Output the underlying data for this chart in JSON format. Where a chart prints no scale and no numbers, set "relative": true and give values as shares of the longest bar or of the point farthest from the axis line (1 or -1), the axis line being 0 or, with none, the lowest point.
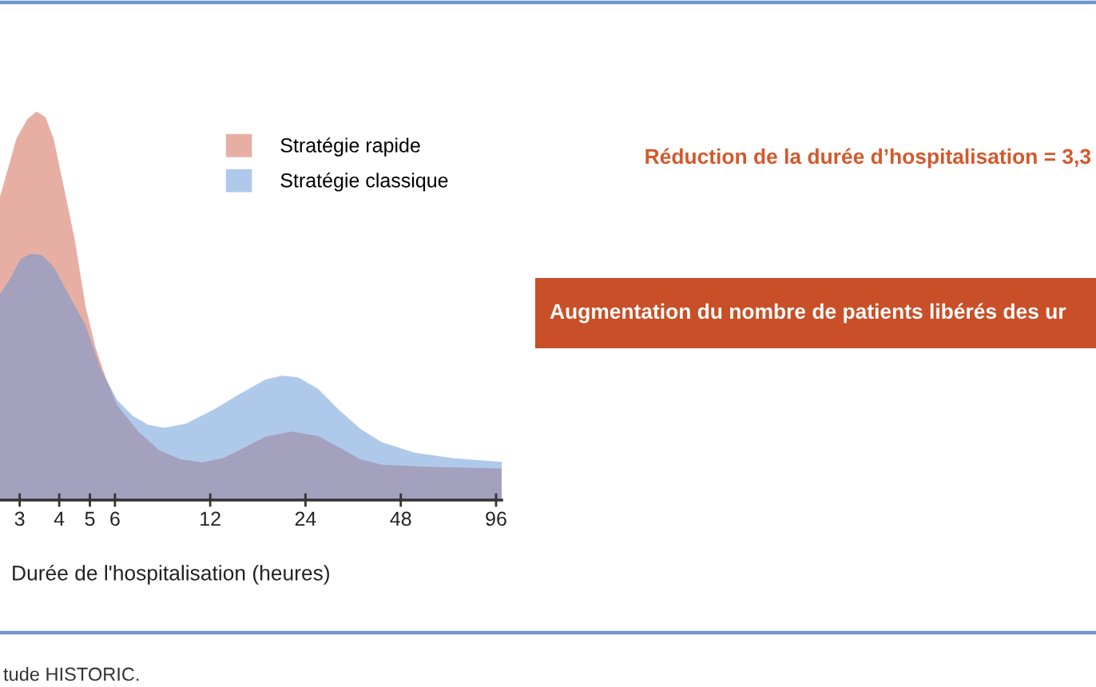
{
  "chart_data": {
    "type": "area",
    "relative": true,
    "log": "x",
    "xlabel": "Durée de l'hospitalisation (heures)",
    "xlim": [
      2.6,
      100
    ],
    "xticks": [
      3,
      4,
      5,
      6,
      12,
      24,
      48,
      96
    ],
    "tick_labels": "x",
    "grid": false,
    "legend": "top right",
    "series": [
      {
        "name": "Stratégie rapide",
        "color": "#d0604a",
        "x": [
          2.6,
          2.93,
          3.17,
          3.39,
          3.62,
          3.84,
          4.15,
          4.48,
          4.84,
          5.22,
          5.64,
          6.09,
          7.11,
          8.29,
          9.67,
          11.3,
          13.2,
          15.4,
          17.9,
          21.7,
          26.3,
          30.7,
          35.8,
          41.8,
          56.9,
          77.4,
          100
        ],
        "values": [
          0.78,
          0.93,
          0.98,
          1.0,
          0.985,
          0.93,
          0.8,
          0.67,
          0.5,
          0.39,
          0.31,
          0.245,
          0.176,
          0.128,
          0.105,
          0.097,
          0.108,
          0.135,
          0.163,
          0.176,
          0.165,
          0.135,
          0.105,
          0.091,
          0.086,
          0.083,
          0.081
        ]
      },
      {
        "name": "Stratégie classique",
        "color": "#5f93d6",
        "x": [
          2.6,
          2.8,
          3.02,
          3.26,
          3.53,
          3.84,
          4.28,
          4.84,
          5.39,
          6.09,
          6.82,
          7.66,
          8.6,
          10.07,
          12.2,
          14.8,
          17.9,
          20.2,
          22.7,
          26.3,
          30.7,
          35.8,
          41.8,
          53.2,
          69.8,
          100
        ],
        "values": [
          0.53,
          0.57,
          0.62,
          0.634,
          0.63,
          0.6,
          0.53,
          0.45,
          0.34,
          0.258,
          0.217,
          0.193,
          0.186,
          0.197,
          0.231,
          0.272,
          0.31,
          0.32,
          0.316,
          0.286,
          0.231,
          0.183,
          0.149,
          0.122,
          0.108,
          0.098
        ]
      }
    ],
    "annotations": [
      "Réduction de la durée d’hospitalisation = 3,3",
      "Augmentation du nombre de patients libérés des ur",
      "tude HISTORIC."
    ]
  }
}
